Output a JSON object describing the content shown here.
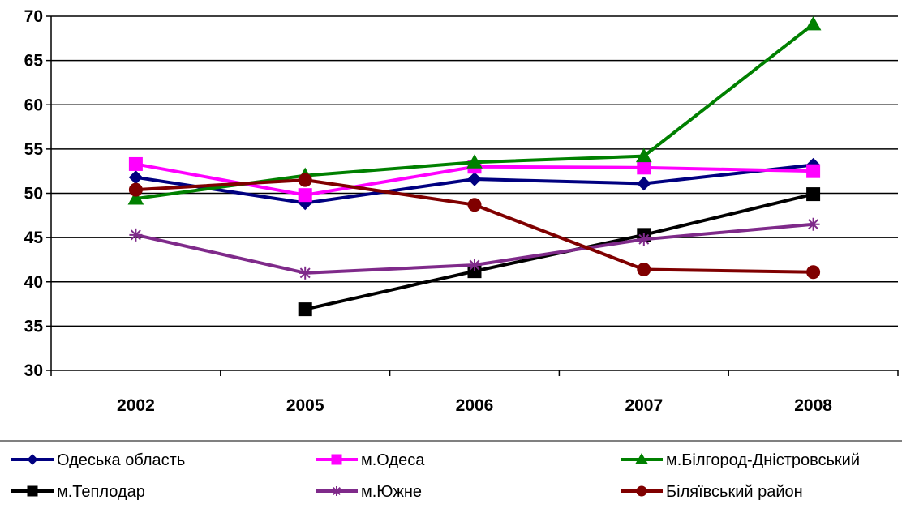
{
  "chart_data": {
    "type": "line",
    "title": "",
    "xlabel": "",
    "ylabel": "",
    "categories": [
      "2002",
      "2005",
      "2006",
      "2007",
      "2008"
    ],
    "ylim": [
      30,
      70
    ],
    "yticks": [
      30,
      35,
      40,
      45,
      50,
      55,
      60,
      65,
      70
    ],
    "grid": "horizontal",
    "legend_position": "bottom",
    "series": [
      {
        "name": "Одеська область",
        "color": "#000080",
        "marker": "diamond",
        "values": [
          51.8,
          48.9,
          51.6,
          51.1,
          53.2
        ]
      },
      {
        "name": "м.Одеса",
        "color": "#ff00ff",
        "marker": "square",
        "values": [
          53.3,
          49.8,
          53.0,
          52.9,
          52.5
        ]
      },
      {
        "name": "м.Білгород-Дністровський",
        "color": "#008000",
        "marker": "triangle",
        "values": [
          49.4,
          52.0,
          53.5,
          54.2,
          69.1
        ]
      },
      {
        "name": "м.Теплодар",
        "color": "#000000",
        "marker": "square",
        "values": [
          null,
          36.9,
          41.2,
          45.3,
          49.9
        ]
      },
      {
        "name": "м.Южне",
        "color": "#7f2a8a",
        "marker": "star",
        "values": [
          45.3,
          41.0,
          41.9,
          44.8,
          46.5
        ]
      },
      {
        "name": "Біляївський район",
        "color": "#800000",
        "marker": "circle",
        "values": [
          50.4,
          51.5,
          48.7,
          41.4,
          41.1
        ]
      }
    ]
  }
}
